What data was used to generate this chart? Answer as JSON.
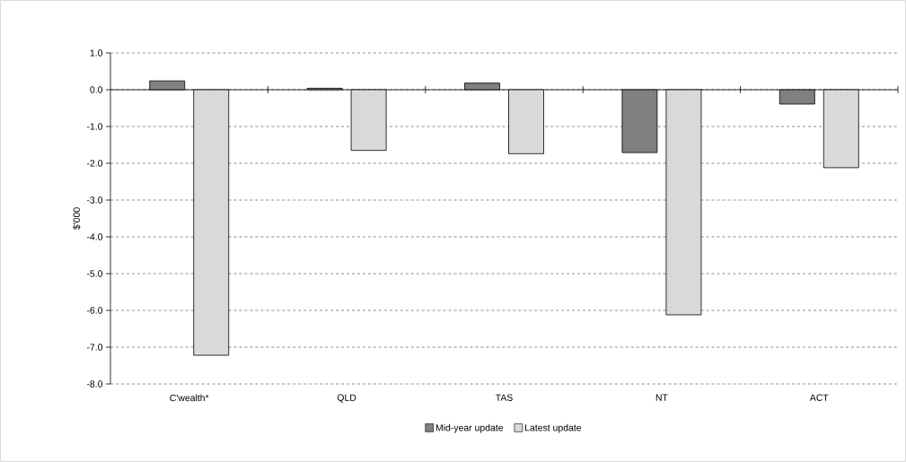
{
  "chart_data": {
    "type": "bar",
    "ylabel": "$'000",
    "categories": [
      "C'wealth*",
      "QLD",
      "TAS",
      "NT",
      "ACT"
    ],
    "series": [
      {
        "name": "Mid-year update",
        "color": "#808080",
        "values": [
          0.24,
          0.04,
          0.18,
          -1.71,
          -0.39
        ]
      },
      {
        "name": "Latest update",
        "color": "#d9d9d9",
        "values": [
          -7.22,
          -1.65,
          -1.74,
          -6.12,
          -2.12
        ]
      }
    ],
    "ylim": [
      -8,
      1
    ],
    "yticks": [
      {
        "value": -8,
        "label": "-8.0"
      },
      {
        "value": -7,
        "label": "-7.0"
      },
      {
        "value": -6,
        "label": "-6.0"
      },
      {
        "value": -5,
        "label": "-5.0"
      },
      {
        "value": -4,
        "label": "-4.0"
      },
      {
        "value": -3,
        "label": "-3.0"
      },
      {
        "value": -2,
        "label": "-2.0"
      },
      {
        "value": -1,
        "label": "-1.0"
      },
      {
        "value": 0,
        "label": "0.0"
      },
      {
        "value": 1,
        "label": "1.0"
      }
    ],
    "grid": "y",
    "legend": "bottom"
  }
}
